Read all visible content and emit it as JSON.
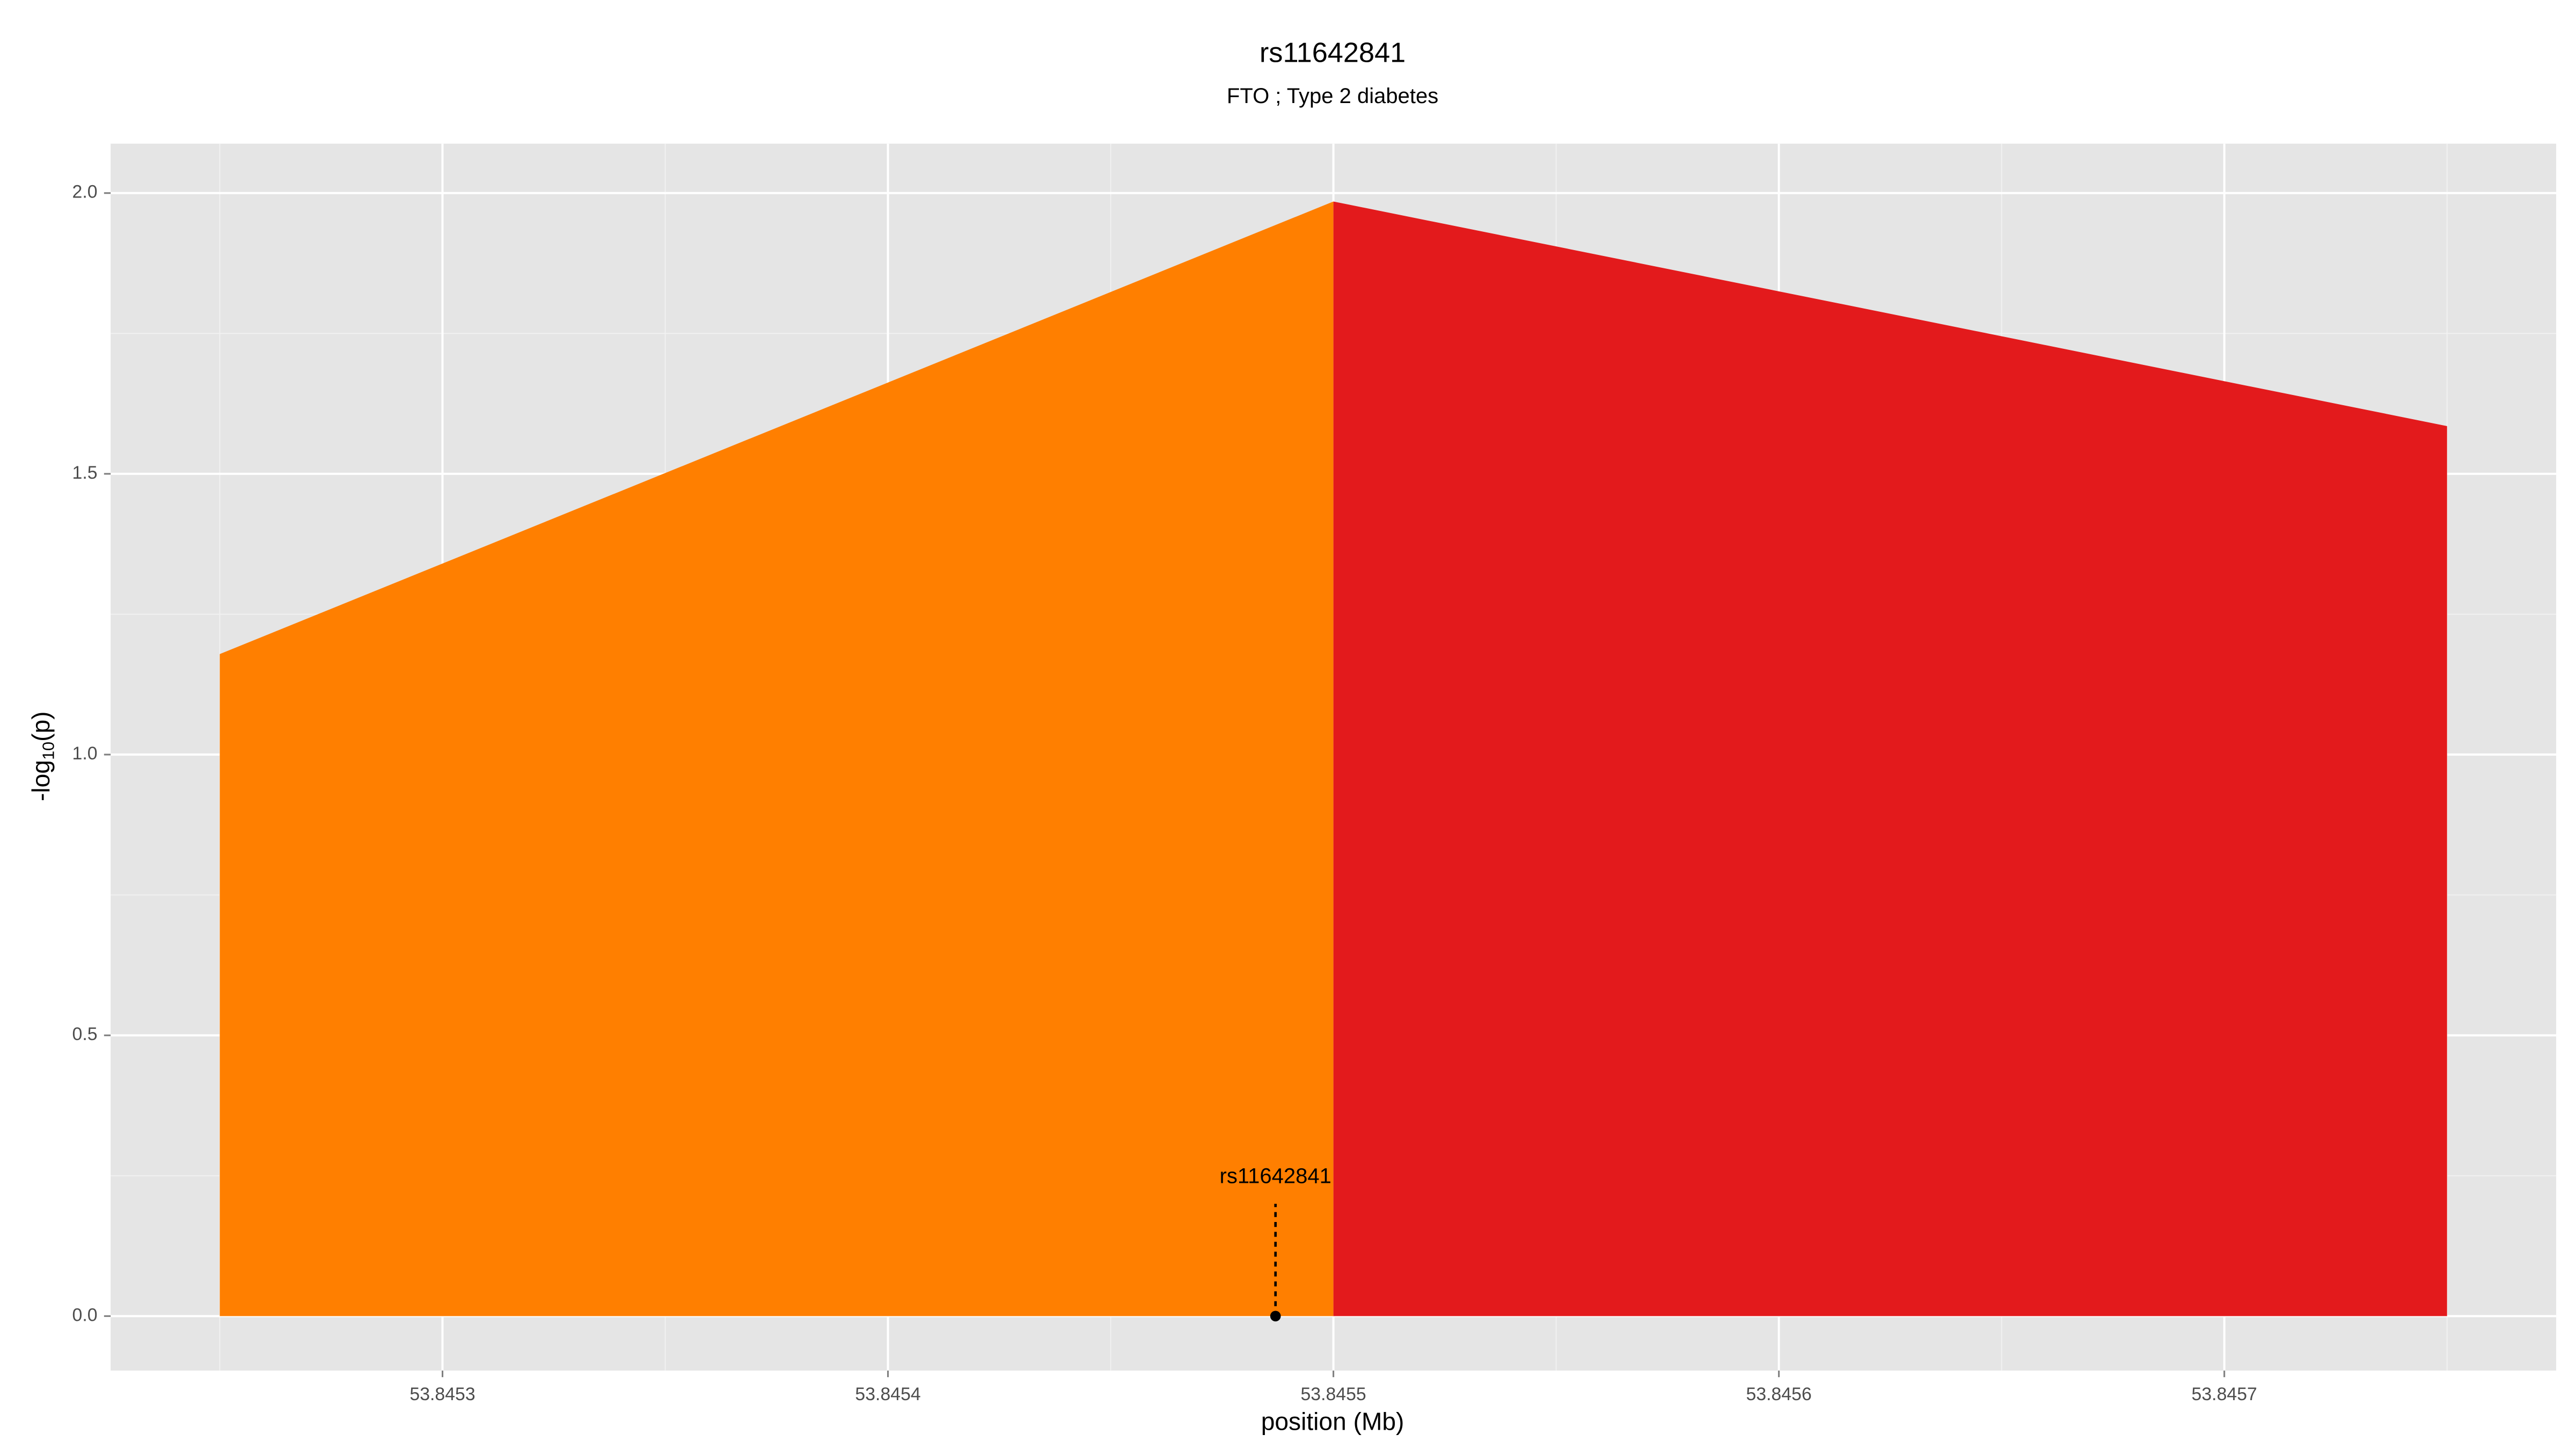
{
  "chart_data": {
    "type": "area",
    "title": "rs11642841",
    "subtitle": "FTO ; Type 2 diabetes",
    "xlabel": "position (Mb)",
    "ylabel": [
      "-log",
      "10",
      "(p)"
    ],
    "series": [
      {
        "color": "#ff7f00",
        "x": [
          53.84525,
          53.8455
        ],
        "values": [
          1.179,
          1.985
        ]
      },
      {
        "color": "#e31a1c",
        "x": [
          53.8455,
          53.84575
        ],
        "values": [
          1.985,
          1.585
        ]
      }
    ],
    "annotation": {
      "text": "rs11642841",
      "x": 53.845487,
      "y": 0
    },
    "xlim": [
      53.8452255,
      53.8457745
    ],
    "ylim": [
      -0.097,
      2.088
    ],
    "xticks": [
      53.8453,
      53.8454,
      53.8455,
      53.8456,
      53.8457
    ],
    "yticks": [
      {
        "value": 0,
        "label": "0.0"
      },
      {
        "value": 0.5,
        "label": "0.5"
      },
      {
        "value": 1,
        "label": "1.0"
      },
      {
        "value": 1.5,
        "label": "1.5"
      },
      {
        "value": 2,
        "label": "2.0"
      }
    ],
    "grid": true
  }
}
